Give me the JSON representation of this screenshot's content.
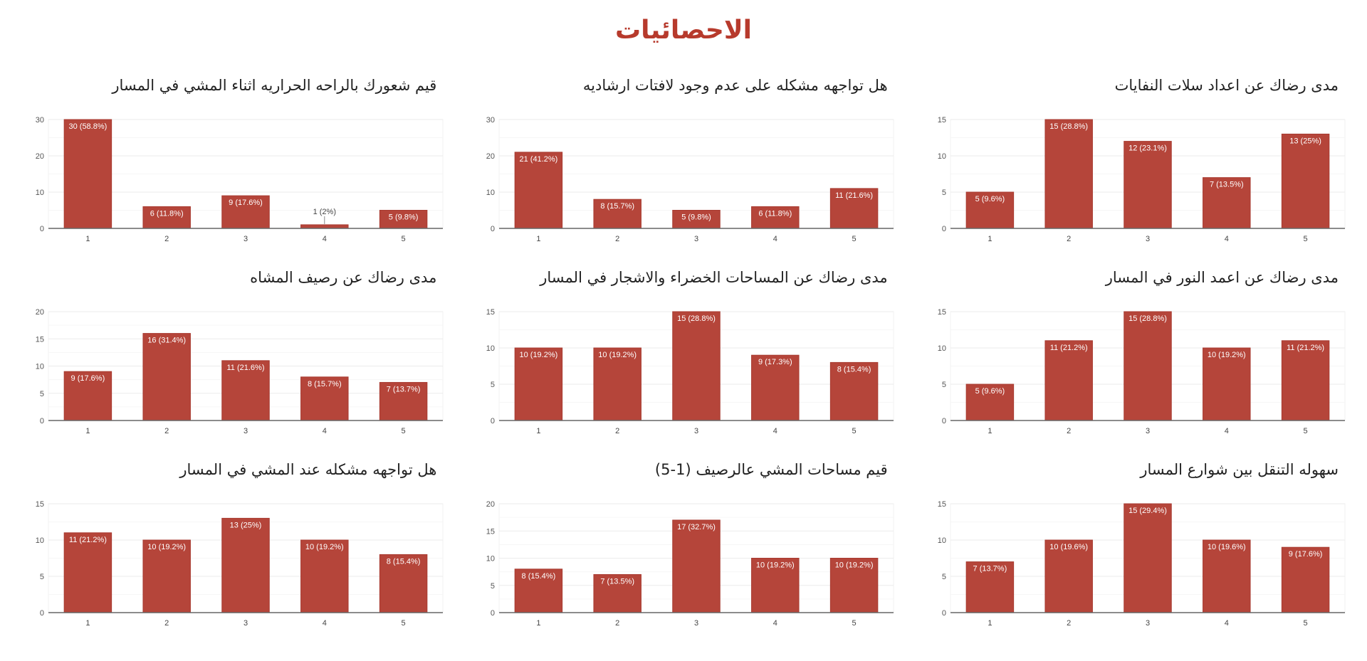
{
  "page_title": "الاحصائيات",
  "colors": {
    "title": "#b73a2c",
    "bar": "#b5453a",
    "grid": "#eeeeee",
    "axis": "#666666"
  },
  "chart_data": [
    {
      "type": "bar",
      "title": "مدى رضاك عن اعداد سلات النفايات",
      "categories": [
        "1",
        "2",
        "3",
        "4",
        "5"
      ],
      "values": [
        5,
        15,
        12,
        7,
        13
      ],
      "labels": [
        "5 (9.6%)",
        "15 (28.8%)",
        "12 (23.1%)",
        "7 (13.5%)",
        "13 (25%)"
      ],
      "ylim": [
        0,
        15
      ],
      "yticks": [
        0,
        5,
        10,
        15
      ],
      "grid": true
    },
    {
      "type": "bar",
      "title": "هل تواجهه مشكله على عدم وجود لافتات ارشاديه",
      "categories": [
        "1",
        "2",
        "3",
        "4",
        "5"
      ],
      "values": [
        21,
        8,
        5,
        6,
        11
      ],
      "labels": [
        "21 (41.2%)",
        "8 (15.7%)",
        "5 (9.8%)",
        "6 (11.8%)",
        "11 (21.6%)"
      ],
      "ylim": [
        0,
        30
      ],
      "yticks": [
        0,
        10,
        20,
        30
      ],
      "grid": true
    },
    {
      "type": "bar",
      "title": "قيم شعورك بالراحه الحراريه اثناء المشي في المسار",
      "categories": [
        "1",
        "2",
        "3",
        "4",
        "5"
      ],
      "values": [
        30,
        6,
        9,
        1,
        5
      ],
      "labels": [
        "30 (58.8%)",
        "6 (11.8%)",
        "9 (17.6%)",
        "1 (2%)",
        "5 (9.8%)"
      ],
      "ylim": [
        0,
        30
      ],
      "yticks": [
        0,
        10,
        20,
        30
      ],
      "grid": true
    },
    {
      "type": "bar",
      "title": "مدى رضاك عن اعمد النور في المسار",
      "categories": [
        "1",
        "2",
        "3",
        "4",
        "5"
      ],
      "values": [
        5,
        11,
        15,
        10,
        11
      ],
      "labels": [
        "5 (9.6%)",
        "11 (21.2%)",
        "15 (28.8%)",
        "10 (19.2%)",
        "11 (21.2%)"
      ],
      "ylim": [
        0,
        15
      ],
      "yticks": [
        0,
        5,
        10,
        15
      ],
      "grid": true
    },
    {
      "type": "bar",
      "title": "مدى رضاك عن المساحات الخضراء والاشجار في المسار",
      "categories": [
        "1",
        "2",
        "3",
        "4",
        "5"
      ],
      "values": [
        10,
        10,
        15,
        9,
        8
      ],
      "labels": [
        "10 (19.2%)",
        "10 (19.2%)",
        "15 (28.8%)",
        "9 (17.3%)",
        "8 (15.4%)"
      ],
      "ylim": [
        0,
        15
      ],
      "yticks": [
        0,
        5,
        10,
        15
      ],
      "grid": true
    },
    {
      "type": "bar",
      "title": "مدى رضاك عن رصيف المشاه",
      "categories": [
        "1",
        "2",
        "3",
        "4",
        "5"
      ],
      "values": [
        9,
        16,
        11,
        8,
        7
      ],
      "labels": [
        "9 (17.6%)",
        "16 (31.4%)",
        "11 (21.6%)",
        "8 (15.7%)",
        "7 (13.7%)"
      ],
      "ylim": [
        0,
        20
      ],
      "yticks": [
        0,
        5,
        10,
        15,
        20
      ],
      "grid": true
    },
    {
      "type": "bar",
      "title": "سهوله التنقل بين شوارع المسار",
      "categories": [
        "1",
        "2",
        "3",
        "4",
        "5"
      ],
      "values": [
        7,
        10,
        15,
        10,
        9
      ],
      "labels": [
        "7 (13.7%)",
        "10 (19.6%)",
        "15 (29.4%)",
        "10 (19.6%)",
        "9 (17.6%)"
      ],
      "ylim": [
        0,
        15
      ],
      "yticks": [
        0,
        5,
        10,
        15
      ],
      "grid": true
    },
    {
      "type": "bar",
      "title": "قيم مساحات المشي عالرصيف (1-5)",
      "categories": [
        "1",
        "2",
        "3",
        "4",
        "5"
      ],
      "values": [
        8,
        7,
        17,
        10,
        10
      ],
      "labels": [
        "8 (15.4%)",
        "7 (13.5%)",
        "17 (32.7%)",
        "10 (19.2%)",
        "10 (19.2%)"
      ],
      "ylim": [
        0,
        20
      ],
      "yticks": [
        0,
        5,
        10,
        15,
        20
      ],
      "grid": true
    },
    {
      "type": "bar",
      "title": "هل تواجهه مشكله عند المشي في المسار",
      "categories": [
        "1",
        "2",
        "3",
        "4",
        "5"
      ],
      "values": [
        11,
        10,
        13,
        10,
        8
      ],
      "labels": [
        "11 (21.2%)",
        "10 (19.2%)",
        "13 (25%)",
        "10 (19.2%)",
        "8 (15.4%)"
      ],
      "ylim": [
        0,
        15
      ],
      "yticks": [
        0,
        5,
        10,
        15
      ],
      "grid": true
    }
  ]
}
